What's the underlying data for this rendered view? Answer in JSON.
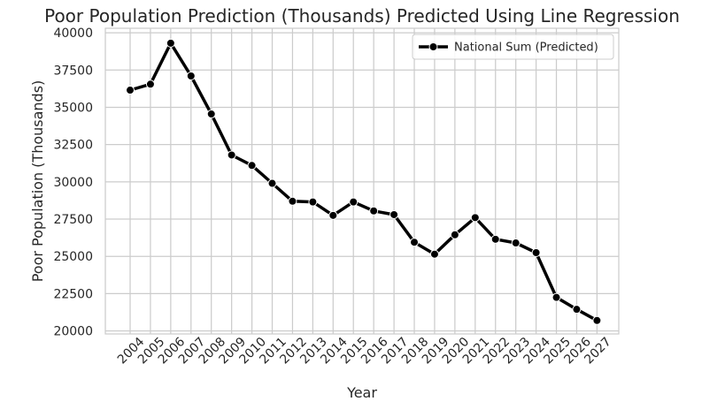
{
  "chart_data": {
    "type": "line",
    "title": "Poor Population Prediction (Thousands) Predicted Using Line Regression",
    "xlabel": "Year",
    "ylabel": "Poor Population (Thousands)",
    "categories": [
      "2004",
      "2005",
      "2006",
      "2007",
      "2008",
      "2009",
      "2010",
      "2011",
      "2012",
      "2013",
      "2014",
      "2015",
      "2016",
      "2017",
      "2018",
      "2019",
      "2020",
      "2021",
      "2022",
      "2023",
      "2024",
      "2025",
      "2026",
      "2027"
    ],
    "series": [
      {
        "name": "National Sum (Predicted)",
        "values": [
          36150,
          36550,
          39300,
          37100,
          34550,
          31800,
          31100,
          29900,
          28700,
          28650,
          27750,
          28650,
          28050,
          27800,
          25950,
          25150,
          26450,
          27600,
          26150,
          25900,
          25250,
          22250,
          21450,
          20700
        ],
        "color": "#000000"
      }
    ],
    "ylim": [
      19800,
      40300
    ],
    "yticks": [
      20000,
      22500,
      25000,
      27500,
      30000,
      32500,
      35000,
      37500,
      40000
    ],
    "ytick_labels": [
      "20000",
      "22500",
      "25000",
      "27500",
      "30000",
      "32500",
      "35000",
      "37500",
      "40000"
    ],
    "grid": true,
    "legend_position": "top-right"
  }
}
